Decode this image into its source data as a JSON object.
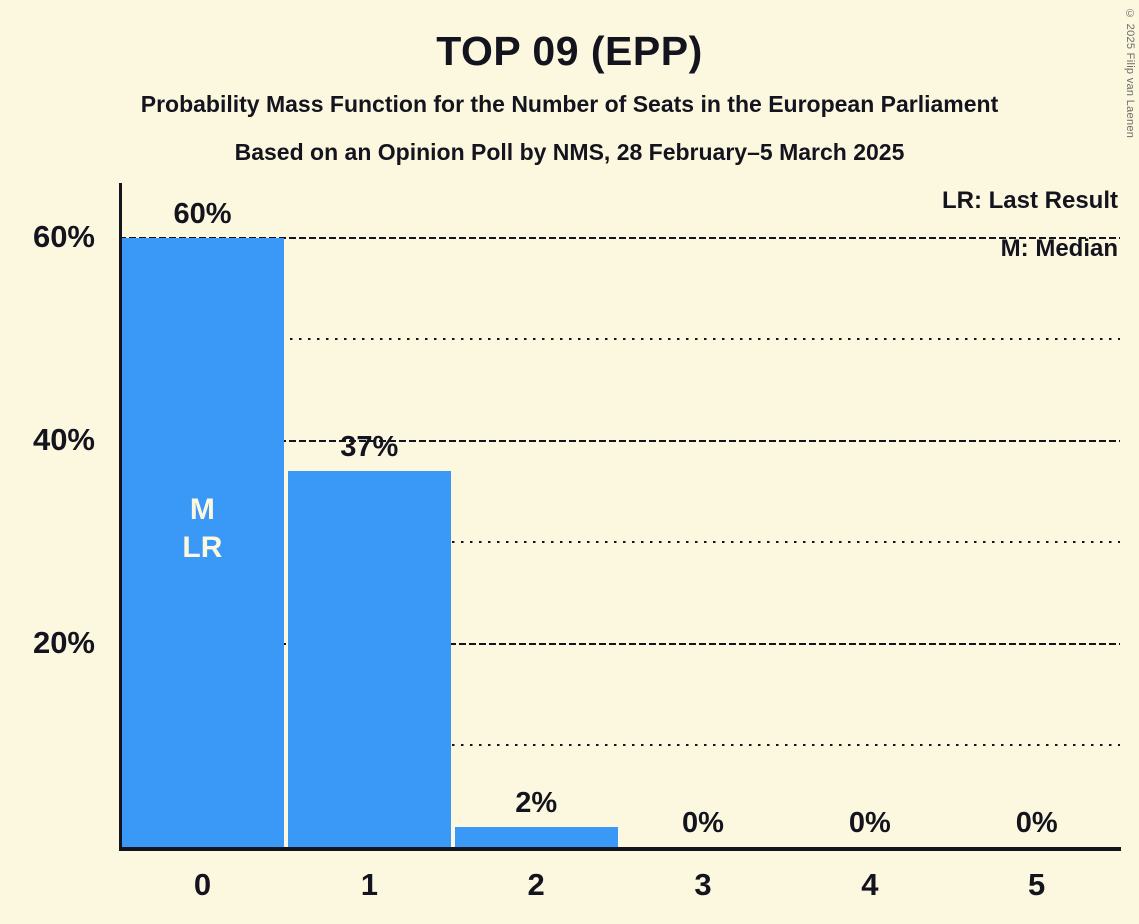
{
  "copyright": "© 2025 Filip van Laenen",
  "chart_data": {
    "type": "bar",
    "title": "TOP 09 (EPP)",
    "subtitle": "Probability Mass Function for the Number of Seats in the European Parliament",
    "subtitle2": "Based on an Opinion Poll by NMS, 28 February–5 March 2025",
    "xlabel": "",
    "ylabel": "",
    "categories": [
      "0",
      "1",
      "2",
      "3",
      "4",
      "5"
    ],
    "values": [
      60,
      37,
      2,
      0,
      0,
      0
    ],
    "value_labels": [
      "60%",
      "37%",
      "2%",
      "0%",
      "0%",
      "0%"
    ],
    "bar_annotations": [
      {
        "category_index": 0,
        "lines": [
          "M",
          "LR"
        ]
      }
    ],
    "y_ticks": [
      {
        "value": 20,
        "label": "20%"
      },
      {
        "value": 40,
        "label": "40%"
      },
      {
        "value": 60,
        "label": "60%"
      }
    ],
    "minor_gridlines": [
      10,
      30,
      50
    ],
    "ylim": [
      0,
      65.4
    ],
    "grid": "horizontal",
    "legend_position": "top-right",
    "legend": [
      {
        "label": "LR: Last Result"
      },
      {
        "label": "M: Median"
      }
    ],
    "colors": {
      "bar": "#3A99F7",
      "background": "#FCF8E0",
      "text": "#14141E",
      "bar_annotation_text": "#FCF8E0",
      "copyright_text": "#6B6B66"
    }
  }
}
